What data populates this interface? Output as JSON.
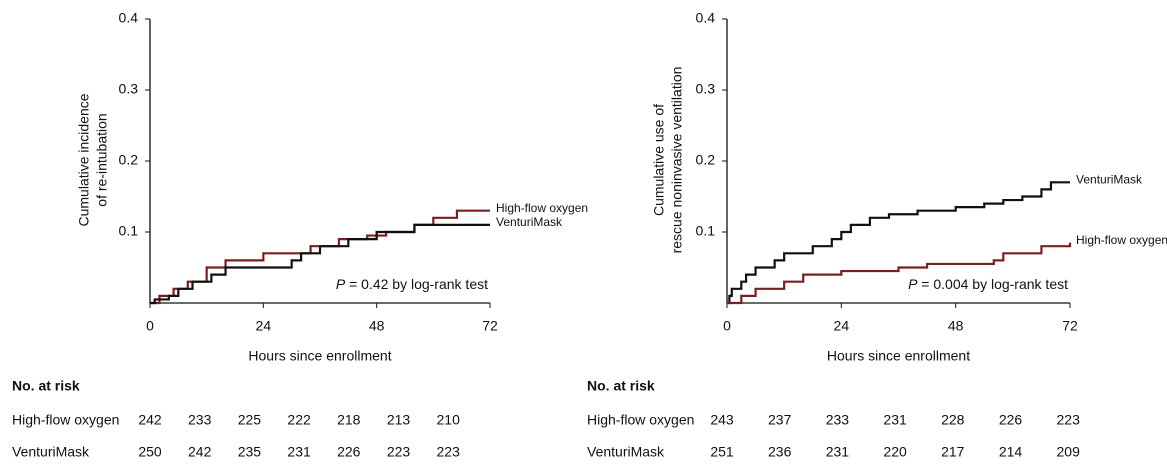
{
  "chart_data": [
    {
      "type": "line",
      "step": true,
      "ylabel": [
        "Cumulative incidence",
        "of re-intubation"
      ],
      "xlabel": "Hours since enrollment",
      "xlim": [
        0,
        72
      ],
      "xticks": [
        0,
        24,
        48,
        72
      ],
      "ylim": [
        0,
        0.4
      ],
      "yticks": [
        0.1,
        0.2,
        0.3,
        0.4
      ],
      "annotation": {
        "italic": "P",
        "text": " = 0.42 by log-rank test"
      },
      "series": [
        {
          "name": "High-flow oxygen",
          "color": "#7a1f1f",
          "x": [
            0,
            2,
            5,
            8,
            12,
            16,
            24,
            34,
            40,
            46,
            50,
            56,
            60,
            65,
            72
          ],
          "values": [
            0,
            0.01,
            0.02,
            0.03,
            0.05,
            0.06,
            0.07,
            0.08,
            0.09,
            0.095,
            0.1,
            0.11,
            0.12,
            0.13,
            0.13
          ]
        },
        {
          "name": "VenturiMask",
          "color": "#111111",
          "x": [
            0,
            1,
            4,
            6,
            9,
            13,
            16,
            30,
            32,
            36,
            42,
            48,
            56,
            72
          ],
          "values": [
            0,
            0.005,
            0.01,
            0.02,
            0.03,
            0.04,
            0.05,
            0.06,
            0.07,
            0.08,
            0.09,
            0.1,
            0.11,
            0.11
          ]
        }
      ],
      "risk_table": {
        "title": "No. at risk",
        "rows": [
          {
            "name": "High-flow oxygen",
            "values": [
              242,
              233,
              225,
              222,
              218,
              213,
              210
            ]
          },
          {
            "name": "VenturiMask",
            "values": [
              250,
              242,
              235,
              231,
              226,
              223,
              223
            ]
          }
        ]
      }
    },
    {
      "type": "line",
      "step": true,
      "ylabel": [
        "Cumulative use of",
        "rescue noninvasive ventilation"
      ],
      "xlabel": "Hours since enrollment",
      "xlim": [
        0,
        72
      ],
      "xticks": [
        0,
        24,
        48,
        72
      ],
      "ylim": [
        0,
        0.4
      ],
      "yticks": [
        0.1,
        0.2,
        0.3,
        0.4
      ],
      "annotation": {
        "italic": "P",
        "text": " = 0.004 by log-rank test"
      },
      "series": [
        {
          "name": "VenturiMask",
          "color": "#111111",
          "x": [
            0,
            0.5,
            1,
            3,
            4,
            6,
            10,
            12,
            18,
            22,
            24,
            26,
            30,
            34,
            40,
            48,
            54,
            58,
            62,
            66,
            68,
            72
          ],
          "values": [
            0,
            0.01,
            0.02,
            0.03,
            0.04,
            0.05,
            0.06,
            0.07,
            0.08,
            0.09,
            0.1,
            0.11,
            0.12,
            0.125,
            0.13,
            0.135,
            0.14,
            0.145,
            0.15,
            0.16,
            0.17,
            0.17
          ]
        },
        {
          "name": "High-flow oxygen",
          "color": "#7a1f1f",
          "x": [
            0,
            3,
            6,
            12,
            16,
            24,
            36,
            42,
            56,
            58,
            66,
            72
          ],
          "values": [
            0,
            0.01,
            0.02,
            0.03,
            0.04,
            0.045,
            0.05,
            0.055,
            0.06,
            0.07,
            0.08,
            0.085
          ]
        }
      ],
      "risk_table": {
        "title": "No. at risk",
        "rows": [
          {
            "name": "High-flow oxygen",
            "values": [
              243,
              237,
              233,
              231,
              228,
              226,
              223
            ]
          },
          {
            "name": "VenturiMask",
            "values": [
              251,
              236,
              231,
              220,
              217,
              214,
              209
            ]
          }
        ]
      }
    }
  ]
}
